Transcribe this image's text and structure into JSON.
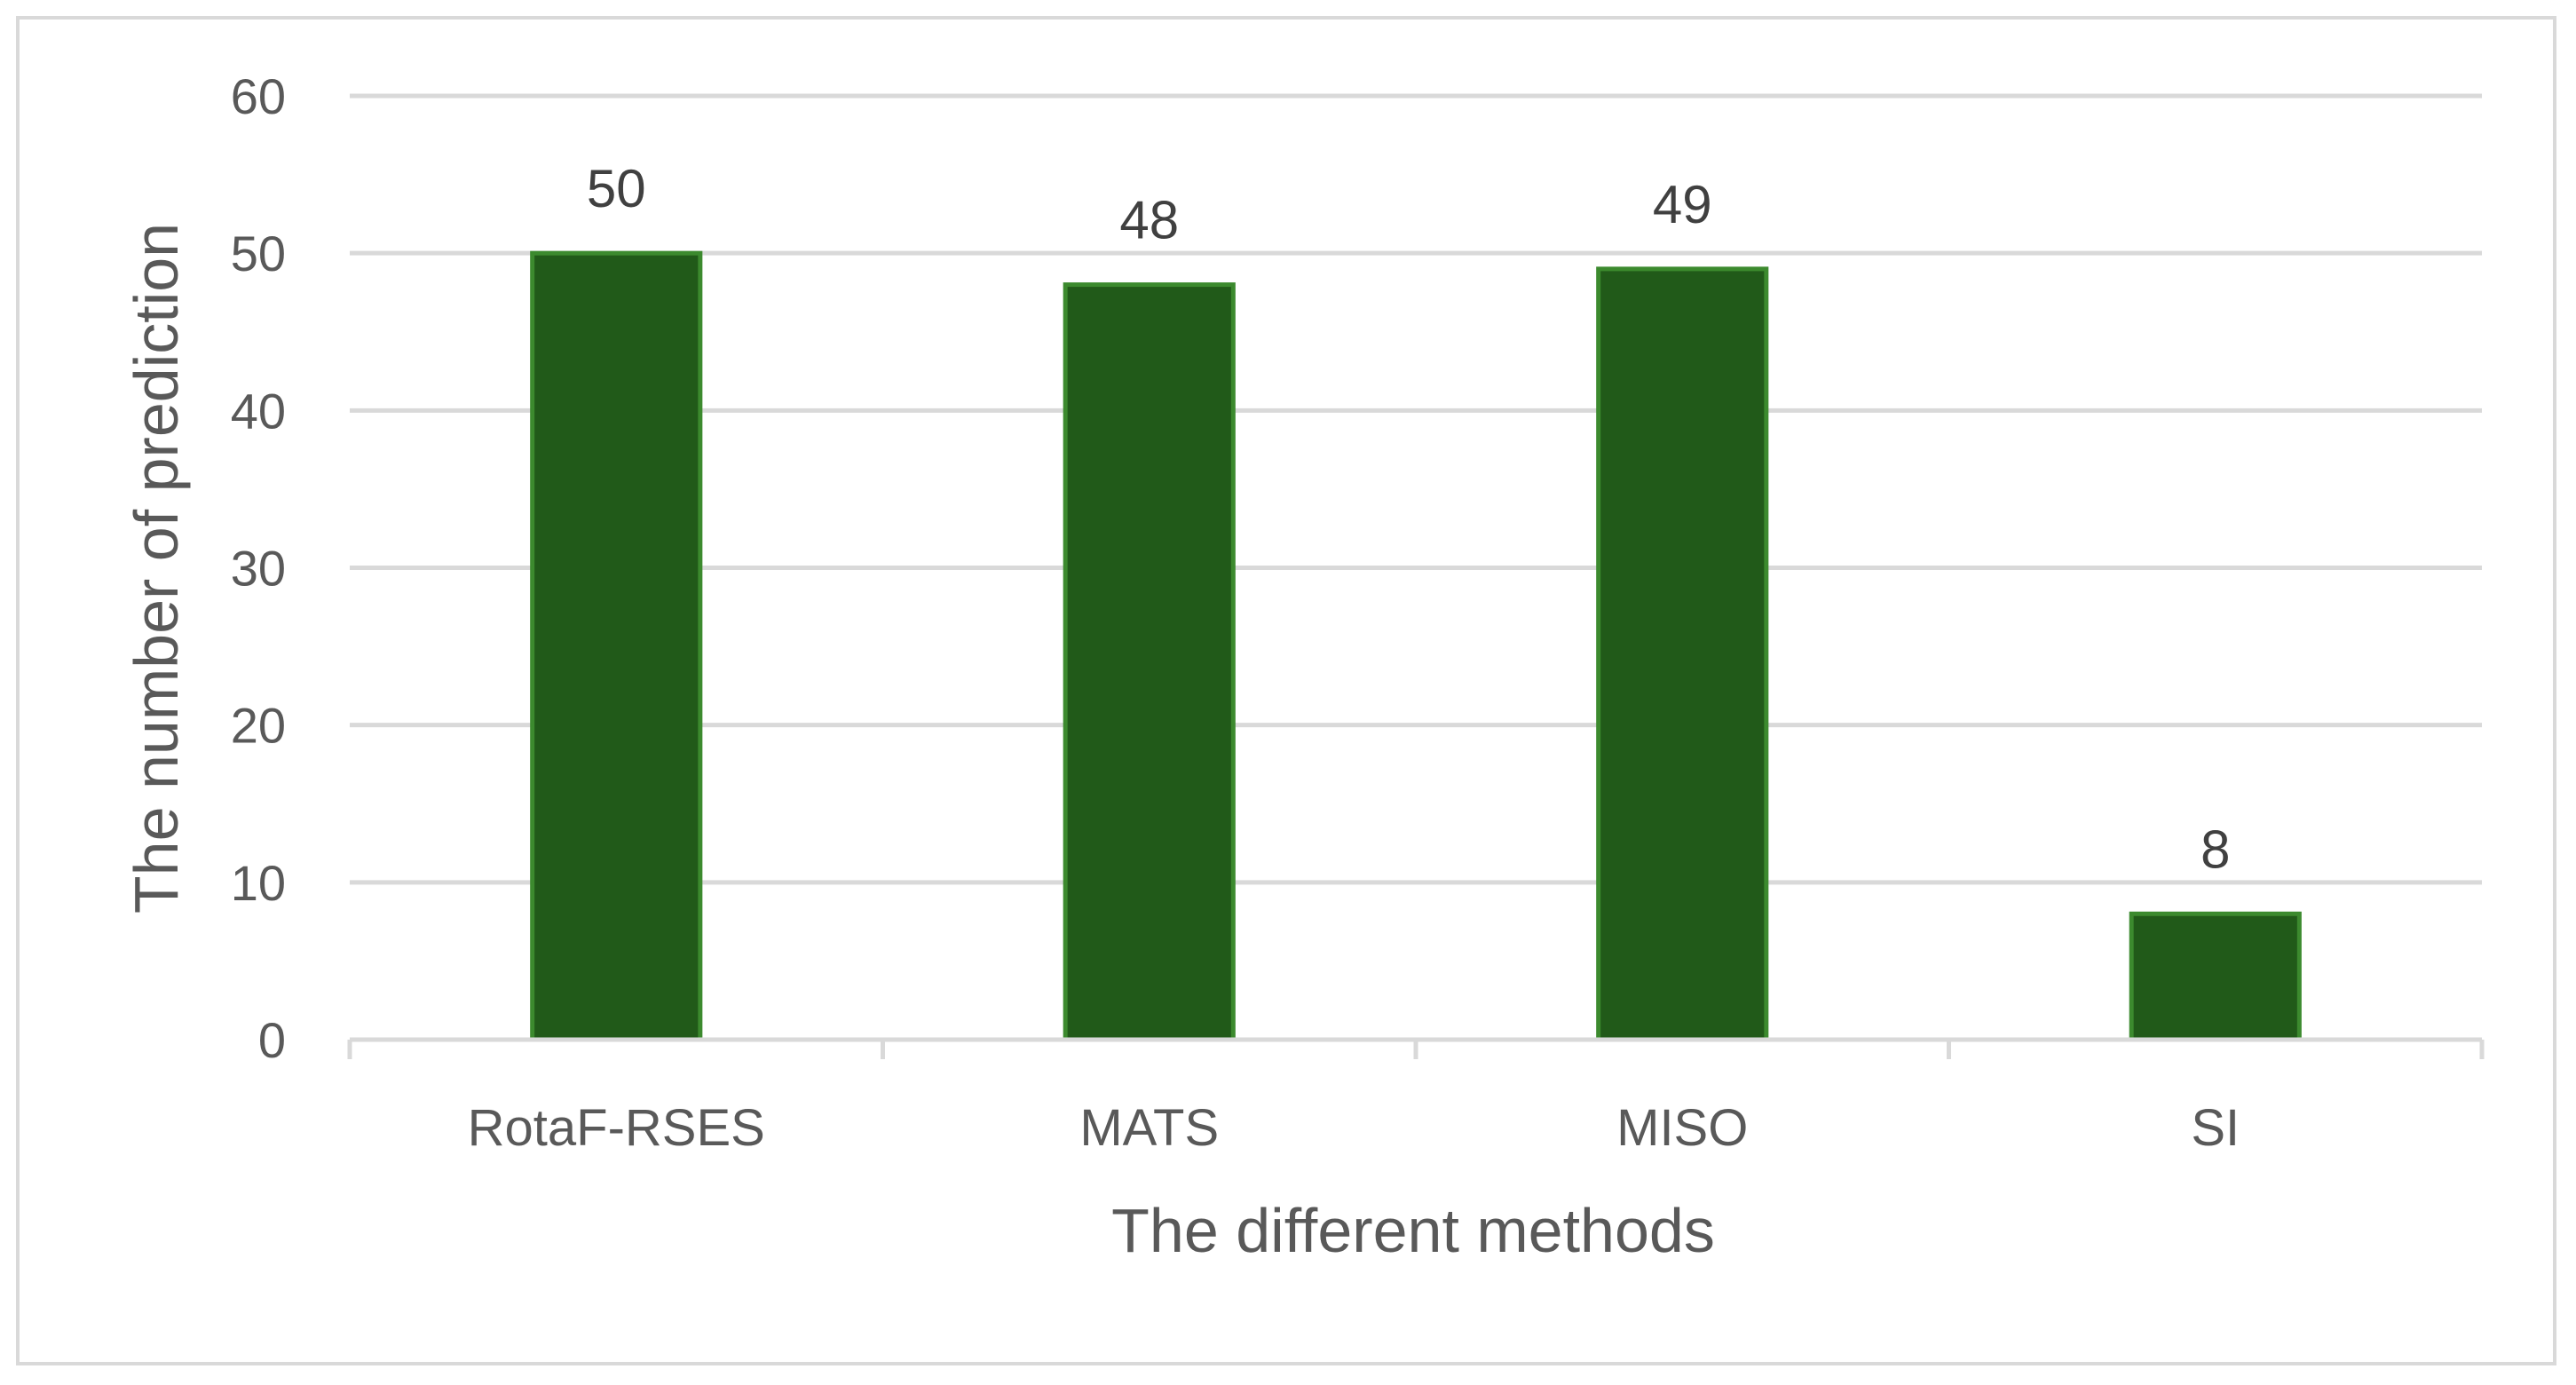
{
  "chart_data": {
    "type": "bar",
    "categories": [
      "RotaF-RSES",
      "MATS",
      "MISO",
      "SI"
    ],
    "values": [
      50,
      48,
      49,
      8
    ],
    "title": "",
    "xlabel": "The different methods",
    "ylabel": "The number of prediction",
    "ylim": [
      0,
      60
    ],
    "yticks": [
      0,
      10,
      20,
      30,
      40,
      50,
      60
    ],
    "grid": true,
    "legend": "none",
    "data_labels": true
  },
  "colors": {
    "bar_fill": "#215a19",
    "bar_edge": "#3c8a2e",
    "grid": "#d9d9d9",
    "axis": "#d9d9d9",
    "text": "#595959"
  }
}
